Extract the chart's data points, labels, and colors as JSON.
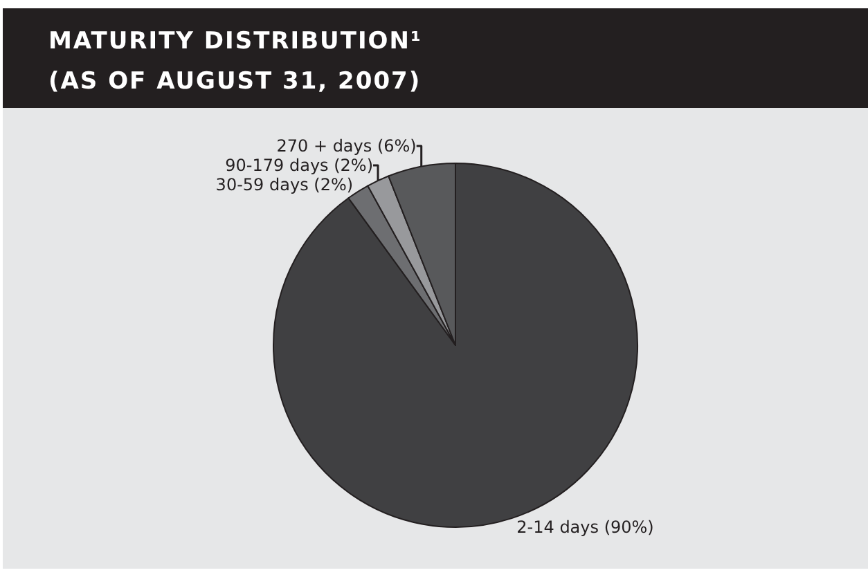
{
  "chart_data": {
    "type": "pie",
    "title": "MATURITY DISTRIBUTION¹",
    "subtitle": "(AS OF AUGUST 31, 2007)",
    "categories": [
      "2-14 days (90%)",
      "30-59 days (2%)",
      "90-179 days (2%)",
      "270 + days (6%)"
    ],
    "values": [
      90,
      2,
      2,
      6
    ],
    "colors": [
      "#404042",
      "#6d6e71",
      "#98999c",
      "#58595b"
    ],
    "legend": false
  }
}
